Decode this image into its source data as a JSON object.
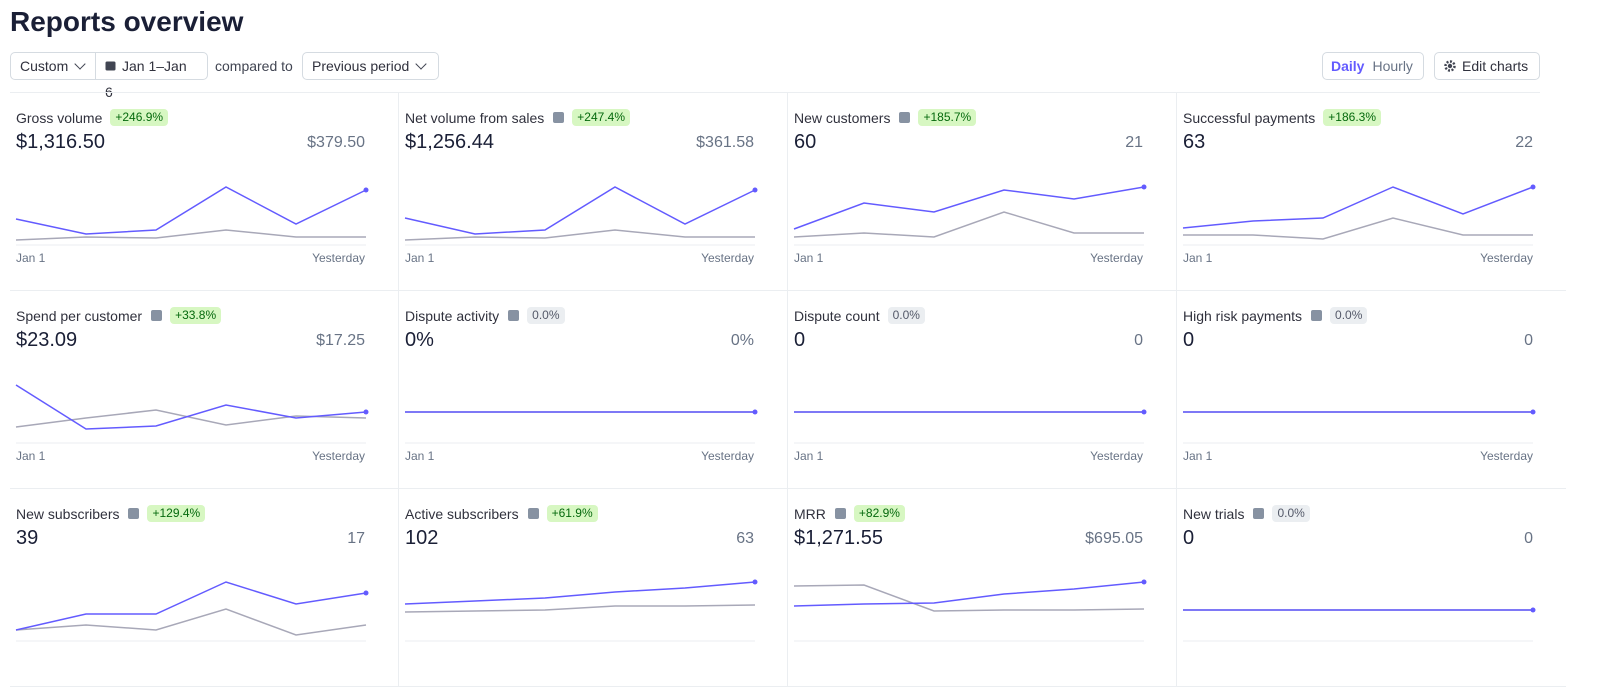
{
  "header": {
    "title": "Reports overview"
  },
  "controls": {
    "range": "Custom",
    "dates": "Jan 1–Jan 6",
    "compared_label": "compared to",
    "comparison": "Previous period",
    "granularity": [
      "Daily",
      "Hourly"
    ],
    "active_granularity": 0,
    "edit": "Edit charts"
  },
  "line_color": "#635bff",
  "previous_color": "#a8a8b8",
  "cards": [
    {
      "label": "Gross volume",
      "info": false,
      "change": "+246.9%",
      "change_type": "positive",
      "value": "$1,316.50",
      "previous_value": "$379.50",
      "x_labels": [
        "Jan 1",
        "Yesterday"
      ],
      "chart": {
        "type": "line",
        "ylim": [
          0,
          54
        ],
        "current": [
          22,
          7,
          11,
          54,
          17,
          51
        ],
        "previous": [
          1,
          4,
          3,
          11,
          4,
          4
        ]
      }
    },
    {
      "label": "Net volume from sales",
      "info": true,
      "change": "+247.4%",
      "change_type": "positive",
      "value": "$1,256.44",
      "previous_value": "$361.58",
      "x_labels": [
        "Jan 1",
        "Yesterday"
      ],
      "chart": {
        "type": "line",
        "ylim": [
          0,
          54
        ],
        "current": [
          23,
          7,
          11,
          54,
          17,
          51
        ],
        "previous": [
          1,
          4,
          3,
          11,
          4,
          4
        ]
      }
    },
    {
      "label": "New customers",
      "info": true,
      "change": "+185.7%",
      "change_type": "positive",
      "value": "60",
      "previous_value": "21",
      "x_labels": [
        "Jan 1",
        "Yesterday"
      ],
      "chart": {
        "type": "line",
        "ylim": [
          0,
          54
        ],
        "current": [
          12,
          38,
          29,
          51,
          42,
          54
        ],
        "previous": [
          4,
          8,
          4,
          29,
          8,
          8
        ]
      }
    },
    {
      "label": "Successful payments",
      "info": false,
      "change": "+186.3%",
      "change_type": "positive",
      "value": "63",
      "previous_value": "22",
      "x_labels": [
        "Jan 1",
        "Yesterday"
      ],
      "chart": {
        "type": "line",
        "ylim": [
          0,
          54
        ],
        "current": [
          13,
          20,
          23,
          54,
          27,
          54
        ],
        "previous": [
          6,
          6,
          2,
          23,
          6,
          6
        ]
      }
    },
    {
      "label": "Spend per customer",
      "info": true,
      "change": "+33.8%",
      "change_type": "positive",
      "value": "$23.09",
      "previous_value": "$17.25",
      "x_labels": [
        "Jan 1",
        "Yesterday"
      ],
      "chart": {
        "type": "line",
        "ylim": [
          0,
          54
        ],
        "current": [
          54,
          10,
          13,
          34,
          21,
          27
        ],
        "previous": [
          12,
          21,
          29,
          14,
          23,
          21
        ]
      }
    },
    {
      "label": "Dispute activity",
      "info": true,
      "change": "0.0%",
      "change_type": "neutral",
      "value": "0%",
      "previous_value": "0%",
      "x_labels": [
        "Jan 1",
        "Yesterday"
      ],
      "chart": {
        "type": "line",
        "ylim": [
          -1,
          1
        ],
        "current": [
          0,
          0,
          0,
          0,
          0,
          0
        ],
        "previous": [
          0,
          0,
          0,
          0,
          0,
          0
        ]
      }
    },
    {
      "label": "Dispute count",
      "info": false,
      "change": "0.0%",
      "change_type": "neutral",
      "value": "0",
      "previous_value": "0",
      "x_labels": [
        "Jan 1",
        "Yesterday"
      ],
      "chart": {
        "type": "line",
        "ylim": [
          -1,
          1
        ],
        "current": [
          0,
          0,
          0,
          0,
          0,
          0
        ],
        "previous": [
          0,
          0,
          0,
          0,
          0,
          0
        ]
      }
    },
    {
      "label": "High risk payments",
      "info": true,
      "change": "0.0%",
      "change_type": "neutral",
      "value": "0",
      "previous_value": "0",
      "x_labels": [
        "Jan 1",
        "Yesterday"
      ],
      "chart": {
        "type": "line",
        "ylim": [
          -1,
          1
        ],
        "current": [
          0,
          0,
          0,
          0,
          0,
          0
        ],
        "previous": [
          0,
          0,
          0,
          0,
          0,
          0
        ]
      }
    },
    {
      "label": "New subscribers",
      "info": true,
      "change": "+129.4%",
      "change_type": "positive",
      "value": "39",
      "previous_value": "17",
      "chart": {
        "type": "line",
        "ylim": [
          0,
          54
        ],
        "current": [
          7,
          23,
          23,
          55,
          33,
          44
        ],
        "previous": [
          7,
          12,
          7,
          28,
          2,
          12
        ]
      }
    },
    {
      "label": "Active subscribers",
      "info": true,
      "change": "+61.9%",
      "change_type": "positive",
      "value": "102",
      "previous_value": "63",
      "chart": {
        "type": "line",
        "ylim": [
          0,
          54
        ],
        "current": [
          33,
          36,
          39,
          45,
          49,
          55
        ],
        "previous": [
          25,
          26,
          27,
          31,
          31,
          32
        ]
      }
    },
    {
      "label": "MRR",
      "info": true,
      "change": "+82.9%",
      "change_type": "positive",
      "value": "$1,271.55",
      "previous_value": "$695.05",
      "chart": {
        "type": "line",
        "ylim": [
          0,
          54
        ],
        "current": [
          31,
          33,
          34,
          43,
          48,
          55
        ],
        "previous": [
          51,
          52,
          26,
          27,
          27,
          28
        ]
      }
    },
    {
      "label": "New trials",
      "info": true,
      "change": "0.0%",
      "change_type": "neutral",
      "value": "0",
      "previous_value": "0",
      "chart": {
        "type": "line",
        "ylim": [
          -1,
          1
        ],
        "current": [
          0,
          0,
          0,
          0,
          0,
          0
        ],
        "previous": [
          0,
          0,
          0,
          0,
          0,
          0
        ]
      }
    }
  ]
}
